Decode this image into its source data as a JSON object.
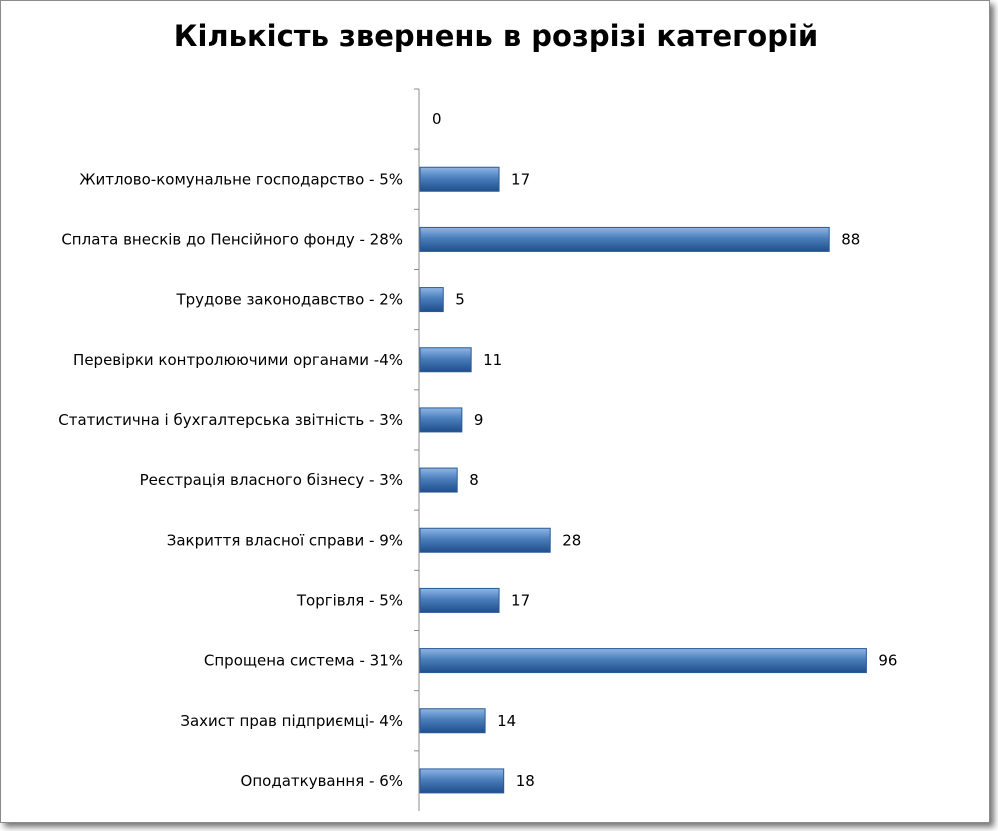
{
  "chart_data": {
    "type": "bar",
    "orientation": "horizontal",
    "title": "Кількість звернень в розрізі категорій",
    "xlabel": "",
    "ylabel": "",
    "grid": false,
    "legend": "none",
    "xlim": [
      0,
      100
    ],
    "categories": [
      "",
      "Житлово-комунальне господарство - 5%",
      "Сплата внесків до Пенсійного фонду - 28%",
      "Трудове законодавство - 2%",
      "Перевірки контролюючими органами -4%",
      "Статистична і бухгалтерська звітність - 3%",
      "Реєстрація власного бізнесу - 3%",
      "Закриття власної справи - 9%",
      "Торгівля - 5%",
      "Спрощена система - 31%",
      "Захист прав підприємці- 4%",
      "Оподаткування - 6%"
    ],
    "values": [
      0,
      17,
      88,
      5,
      11,
      9,
      8,
      28,
      17,
      96,
      14,
      18
    ],
    "colors": {
      "bar": "#4a7ebb",
      "bar_light": "#8fb6e6",
      "bar_dark": "#1f4e8c",
      "bar_edge": "#2a5a96",
      "axis": "#8c8c8c"
    }
  }
}
